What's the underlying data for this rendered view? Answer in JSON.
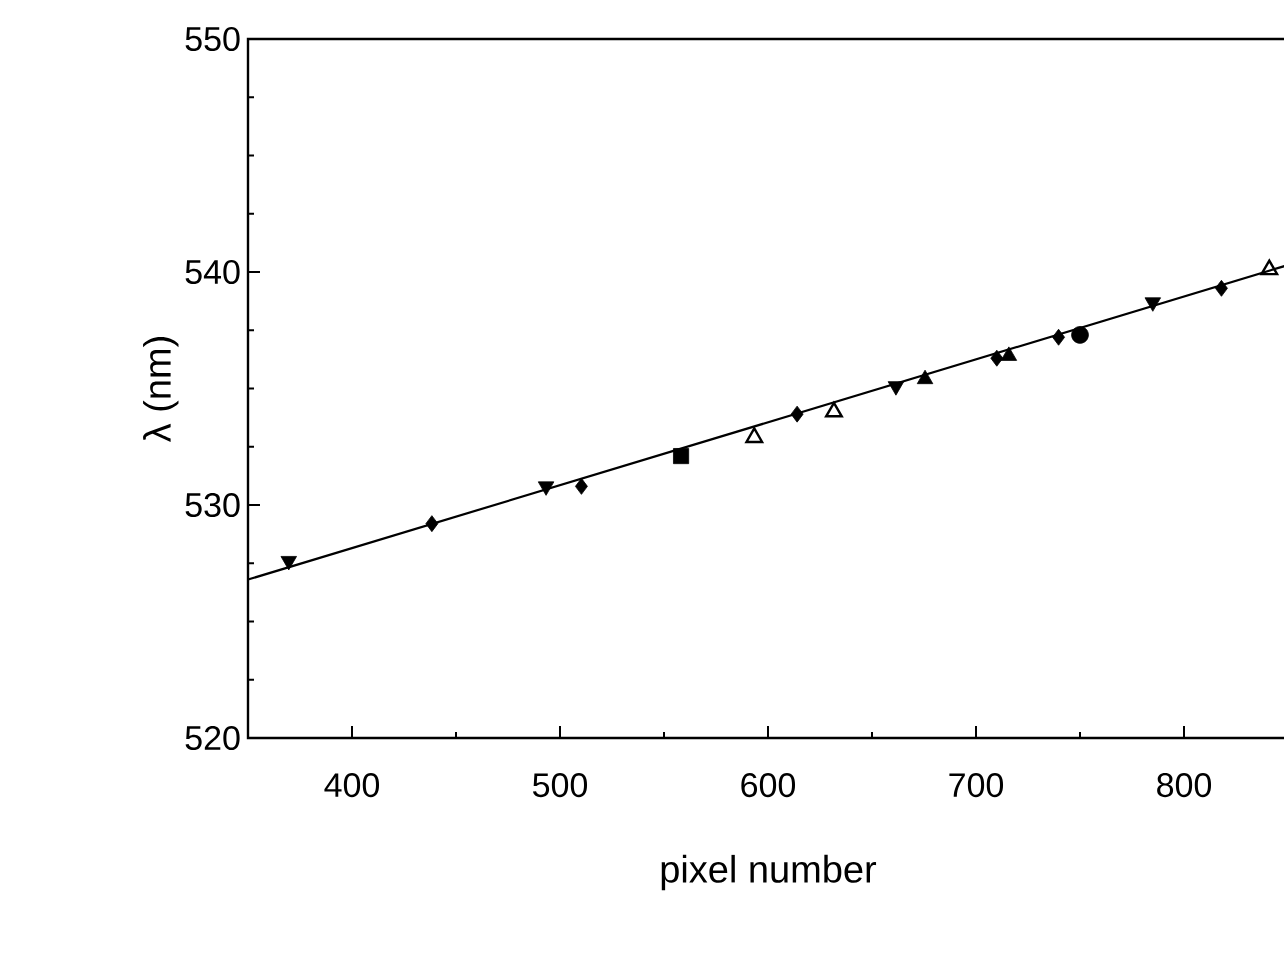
{
  "chart_data": {
    "type": "scatter",
    "xlabel": "pixel number",
    "ylabel": "λ (nm)",
    "xlim": [
      350,
      850
    ],
    "ylim": [
      520,
      550
    ],
    "xticks": [
      400,
      {
        "value": 450,
        "label": null
      },
      500,
      {
        "value": 550,
        "label": null
      },
      600,
      {
        "value": 650,
        "label": null
      },
      700,
      {
        "value": 750,
        "label": null
      },
      800
    ],
    "yticks": [
      520,
      {
        "value": 522.5,
        "label": null
      },
      {
        "value": 525,
        "label": null
      },
      {
        "value": 527.5,
        "label": null
      },
      530,
      {
        "value": 532.5,
        "label": null
      },
      {
        "value": 535,
        "label": null
      },
      {
        "value": 537.5,
        "label": null
      },
      540,
      {
        "value": 542.5,
        "label": null
      },
      {
        "value": 545,
        "label": null
      },
      {
        "value": 547.5,
        "label": null
      },
      550
    ],
    "grid": false,
    "series": [
      {
        "marker": "triangle-down",
        "color": "#000000",
        "x": [
          369.6,
          493.3,
          661.5,
          785
        ],
        "values": [
          527.6,
          530.8,
          535.1,
          538.7
        ]
      },
      {
        "marker": "diamond",
        "color": "#000000",
        "x": [
          438.4,
          510.3,
          614,
          710,
          739.7,
          818
        ],
        "values": [
          529.2,
          530.8,
          533.9,
          536.3,
          537.2,
          539.3
        ]
      },
      {
        "marker": "square",
        "color": "#000000",
        "x": [
          558.2
        ],
        "values": [
          532.1
        ]
      },
      {
        "marker": "triangle-open",
        "color": "#000000",
        "x": [
          593.4,
          631.7,
          841
        ],
        "values": [
          532.9,
          534.0,
          540.1
        ]
      },
      {
        "marker": "triangle",
        "color": "#000000",
        "x": [
          675.5,
          715.8
        ],
        "values": [
          535.4,
          536.4
        ]
      },
      {
        "marker": "circle",
        "color": "#000000",
        "x": [
          750
        ],
        "values": [
          537.3
        ]
      },
      {
        "type": "line",
        "marker": "none",
        "line_style": "solid",
        "color": "#000000",
        "x": [
          350,
          850
        ],
        "values": [
          526.8,
          540.3
        ]
      }
    ]
  }
}
